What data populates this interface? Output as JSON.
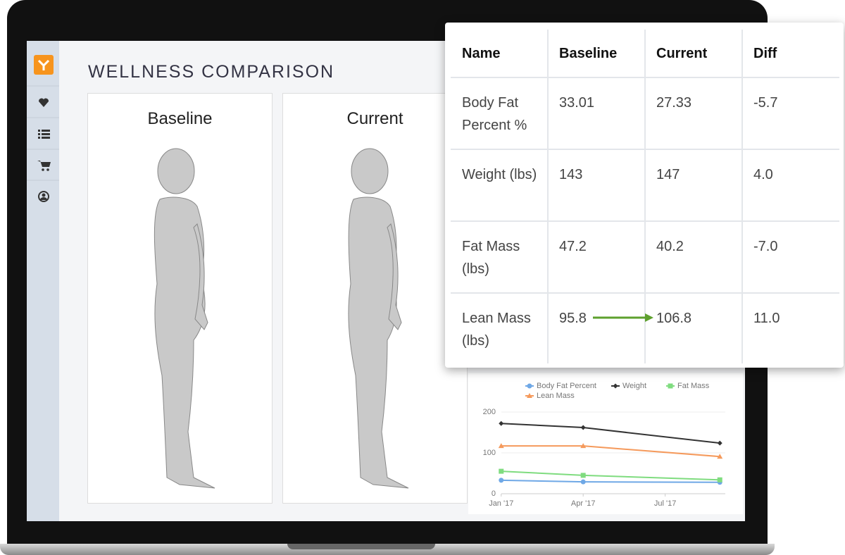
{
  "header": {
    "title": "WELLNESS COMPARISON"
  },
  "panels": [
    {
      "label": "Baseline"
    },
    {
      "label": "Current"
    }
  ],
  "table": {
    "columns": [
      "Name",
      "Baseline",
      "Current",
      "Diff"
    ],
    "rows": [
      [
        "Body Fat Percent %",
        "33.01",
        "27.33",
        "-5.7"
      ],
      [
        "Weight (lbs)",
        "143",
        "147",
        "4.0"
      ],
      [
        "Fat Mass (lbs)",
        "47.2",
        "40.2",
        "-7.0"
      ],
      [
        "Lean Mass (lbs)",
        "95.8",
        "106.8",
        "11.0"
      ]
    ]
  },
  "chart_data": {
    "type": "line",
    "x": [
      0,
      3,
      8
    ],
    "xlim": [
      -0.2,
      8.2
    ],
    "xticks": [
      {
        "value": 0,
        "label": "Jan '17"
      },
      {
        "value": 3,
        "label": "Apr '17"
      },
      {
        "value": 6,
        "label": "Jul '17"
      }
    ],
    "ylim": [
      0,
      200
    ],
    "yticks": [
      0,
      100,
      200
    ],
    "grid": true,
    "series": [
      {
        "name": "Body Fat Percent",
        "color": "#6fa8e6",
        "marker": "circle",
        "values": [
          33,
          29,
          28
        ]
      },
      {
        "name": "Weight",
        "color": "#333333",
        "marker": "diamond",
        "values": [
          172,
          162,
          124
        ]
      },
      {
        "name": "Fat Mass",
        "color": "#7fdc7f",
        "marker": "square",
        "values": [
          55,
          45,
          34
        ]
      },
      {
        "name": "Lean Mass",
        "color": "#f59a5c",
        "marker": "triangle",
        "values": [
          117,
          117,
          91
        ]
      }
    ]
  }
}
